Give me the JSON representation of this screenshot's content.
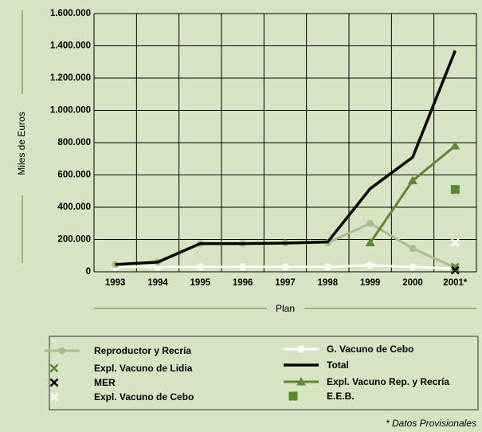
{
  "chart_data": {
    "type": "line",
    "ylabel": "Miles de Euros",
    "xlabel": "Plan",
    "note": "* Datos Provisionales",
    "categories": [
      "1993",
      "1994",
      "1995",
      "1996",
      "1997",
      "1998",
      "1999",
      "2000",
      "2001*"
    ],
    "ylim": [
      0,
      1600000
    ],
    "yticks": [
      0,
      {
        "value": 200000,
        "label": "200.000"
      },
      {
        "value": 400000,
        "label": "400.000"
      },
      {
        "value": 600000,
        "label": "600.000"
      },
      {
        "value": 800000,
        "label": "800.000"
      },
      {
        "value": 1000000,
        "label": "1.000.000"
      },
      {
        "value": 1200000,
        "label": "1.200.000"
      },
      {
        "value": 1400000,
        "label": "1.400.000"
      },
      {
        "value": 1600000,
        "label": "1.600.000"
      }
    ],
    "grid": true,
    "series": [
      {
        "name": "Reproductor y Recría",
        "color": "#a7bf8c",
        "marker": "circle",
        "line": true,
        "values": [
          45000,
          60000,
          175000,
          175000,
          178000,
          180000,
          300000,
          145000,
          25000
        ]
      },
      {
        "name": "Expl. Vacuno de Lidia",
        "color": "#5c8a2e",
        "marker": "x",
        "line": false,
        "values": [
          null,
          null,
          null,
          null,
          null,
          null,
          null,
          null,
          30000
        ]
      },
      {
        "name": "MER",
        "color": "#000000",
        "marker": "x",
        "line": false,
        "values": [
          null,
          null,
          null,
          null,
          null,
          null,
          null,
          null,
          10000
        ]
      },
      {
        "name": "Expl. Vacuno de Cebo",
        "color": "#ffffff",
        "marker": "x",
        "line": false,
        "values": [
          null,
          null,
          null,
          null,
          null,
          null,
          null,
          null,
          180000
        ]
      },
      {
        "name": "G. Vacuno de Cebo",
        "color": "#ffffff",
        "marker": "circle",
        "line": true,
        "values": [
          30000,
          30000,
          30000,
          30000,
          30000,
          30000,
          40000,
          30000,
          20000
        ]
      },
      {
        "name": "Total",
        "color": "#000000",
        "marker": "none",
        "line": true,
        "values": [
          45000,
          60000,
          175000,
          175000,
          178000,
          185000,
          515000,
          710000,
          1370000
        ]
      },
      {
        "name": "Expl. Vacuno Rep. y Recría",
        "color": "#5c8a2e",
        "marker": "triangle",
        "line": true,
        "values": [
          null,
          null,
          null,
          null,
          null,
          null,
          180000,
          565000,
          780000
        ]
      },
      {
        "name": "E.E.B.",
        "color": "#5a8a2a",
        "marker": "square",
        "line": false,
        "values": [
          null,
          null,
          null,
          null,
          null,
          null,
          null,
          null,
          510000
        ]
      }
    ]
  }
}
